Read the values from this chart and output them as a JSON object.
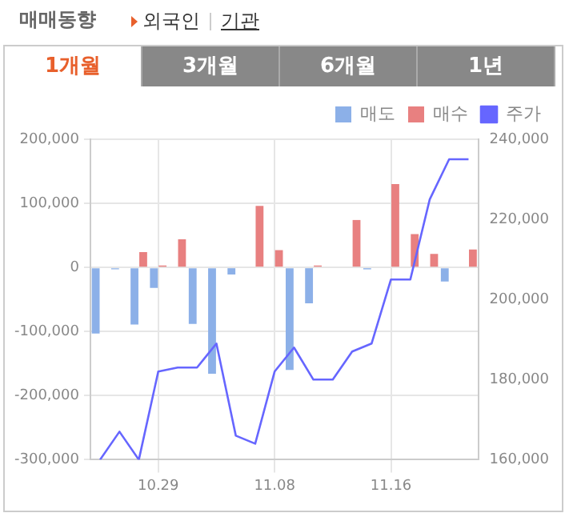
{
  "chart_data": {
    "type": "bar",
    "title": "매매동향",
    "annotations": [
      "외국인",
      "기관",
      "1개월",
      "3개월",
      "6개월",
      "1년"
    ],
    "categories": [
      null,
      null,
      null,
      "10.29",
      null,
      null,
      null,
      null,
      null,
      "11.08",
      null,
      null,
      null,
      null,
      null,
      "11.16",
      null,
      null,
      null,
      null
    ],
    "series": [
      {
        "name": "매도",
        "color": "#8cb0e8",
        "values": [
          -103000,
          -3000,
          -89000,
          -32000,
          0,
          -88000,
          -166000,
          -11000,
          0,
          0,
          -160000,
          -56000,
          0,
          0,
          -3000,
          0,
          0,
          0,
          -22000,
          0
        ]
      },
      {
        "name": "매수",
        "color": "#e88080",
        "values": [
          0,
          0,
          24000,
          3000,
          44000,
          0,
          0,
          0,
          96000,
          27000,
          0,
          3000,
          0,
          74000,
          0,
          130000,
          52000,
          21000,
          0,
          28000
        ]
      },
      {
        "name": "주가",
        "type": "line",
        "axis": "y2",
        "color": "#6666ff",
        "values": [
          160000,
          167000,
          160000,
          182000,
          183000,
          183000,
          189000,
          166000,
          164000,
          182000,
          188000,
          180000,
          180000,
          187000,
          189000,
          205000,
          205000,
          225000,
          235000,
          235000
        ]
      }
    ],
    "ylim": [
      -300000,
      200000
    ],
    "yticks": [
      {
        "value": -300000,
        "label": "-300,000"
      },
      {
        "value": -200000,
        "label": "-200,000"
      },
      {
        "value": -100000,
        "label": "-100,000"
      },
      {
        "value": 0,
        "label": "0"
      },
      {
        "value": 100000,
        "label": "100,000"
      },
      {
        "value": 200000,
        "label": "200,000"
      }
    ],
    "y2lim": [
      160000,
      240000
    ],
    "y2ticks": [
      {
        "value": 160000,
        "label": "160,000"
      },
      {
        "value": 180000,
        "label": "180,000"
      },
      {
        "value": 200000,
        "label": "200,000"
      },
      {
        "value": 220000,
        "label": "220,000"
      },
      {
        "value": 240000,
        "label": "240,000"
      }
    ],
    "grid": true,
    "legend": "top right",
    "marker": "none",
    "line_style": "solid"
  }
}
